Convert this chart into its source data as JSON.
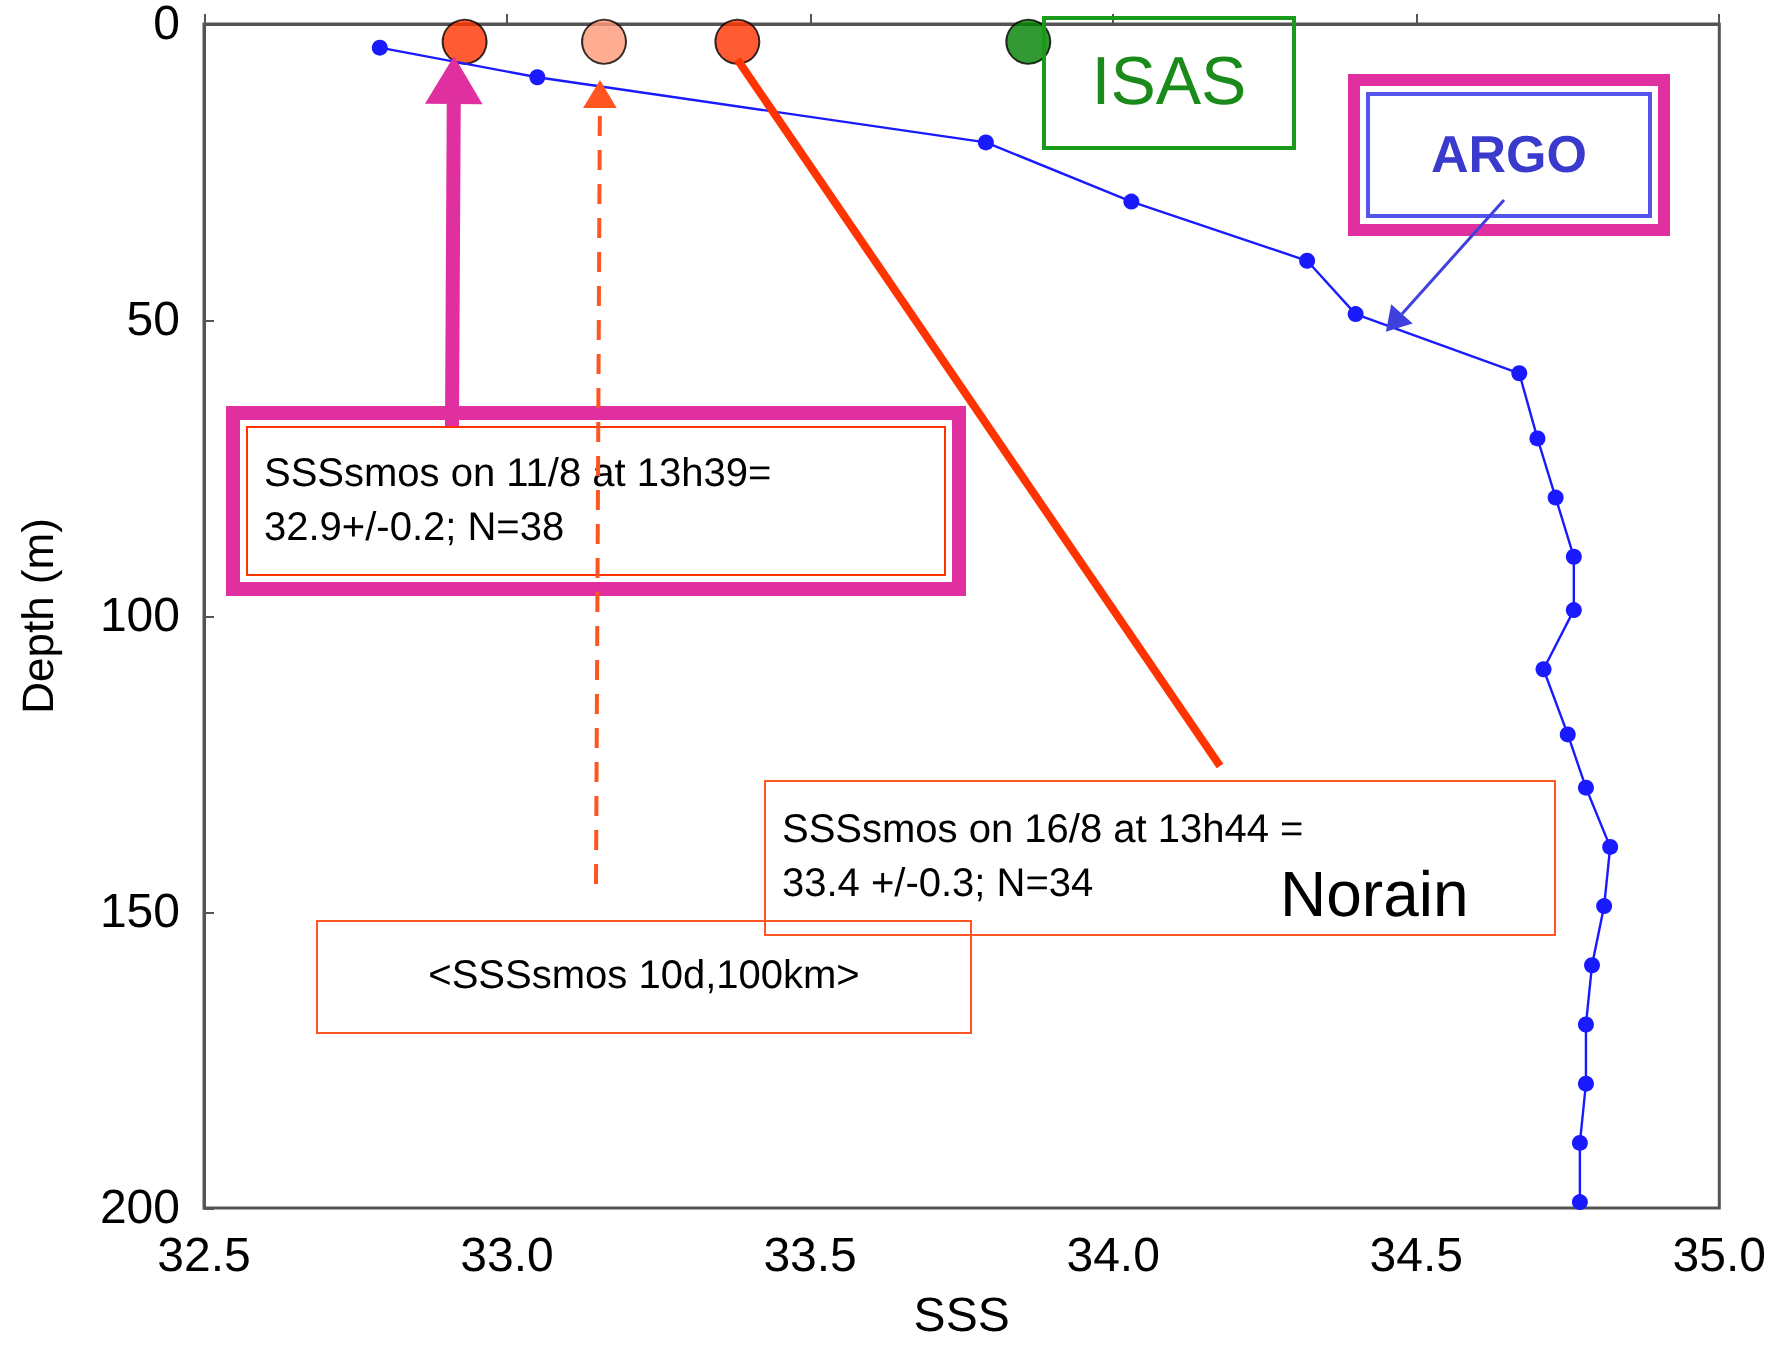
{
  "chart_data": {
    "type": "line",
    "xlabel": "SSS",
    "ylabel": "Depth (m)",
    "xlim": [
      32.5,
      35.0
    ],
    "xticks": [
      32.5,
      {
        "value": 33,
        "label": "33.0"
      },
      33.5,
      {
        "value": 34,
        "label": "34.0"
      },
      34.5,
      {
        "value": 35,
        "label": "35.0"
      }
    ],
    "ylim": [
      200,
      0
    ],
    "yticks": [
      0,
      50,
      100,
      150,
      200
    ],
    "grid": false,
    "marker": "circle",
    "series": [
      {
        "color": "#1a1aff",
        "x": [
          32.79,
          33.05,
          33.79,
          34.03,
          34.32,
          34.4,
          34.67,
          34.7,
          34.73,
          34.76,
          34.76,
          34.71,
          34.75,
          34.78,
          34.82,
          34.81,
          34.79,
          34.78,
          34.78,
          34.77,
          34.77
        ],
        "values": [
          4,
          9,
          20,
          30,
          40,
          49,
          59,
          70,
          80,
          90,
          99,
          109,
          120,
          129,
          139,
          149,
          159,
          169,
          179,
          189,
          199
        ]
      },
      {
        "type": "scatter",
        "color": "#ff3300",
        "x": [
          32.93,
          33.38
        ],
        "values": [
          3,
          3
        ]
      },
      {
        "type": "scatter",
        "color": "#ff9977",
        "x": [
          33.16
        ],
        "values": [
          3
        ]
      },
      {
        "type": "scatter",
        "color": "#008000",
        "x": [
          33.86
        ],
        "values": [
          3
        ]
      }
    ],
    "annotations": [
      "ISAS",
      {
        "text": "ARGO",
        "x": 34.45,
        "y": 52
      },
      "SSSsmos on 11/8 at 13h39= 32.9+/-0.2; N=38",
      {
        "text": "SSSsmos on 16/8 at 13h44 = 33.4 +/-0.3; N=34",
        "x": 33.38,
        "y": 6
      },
      "Norain",
      "<SSSsmos 10d,100km>"
    ]
  }
}
